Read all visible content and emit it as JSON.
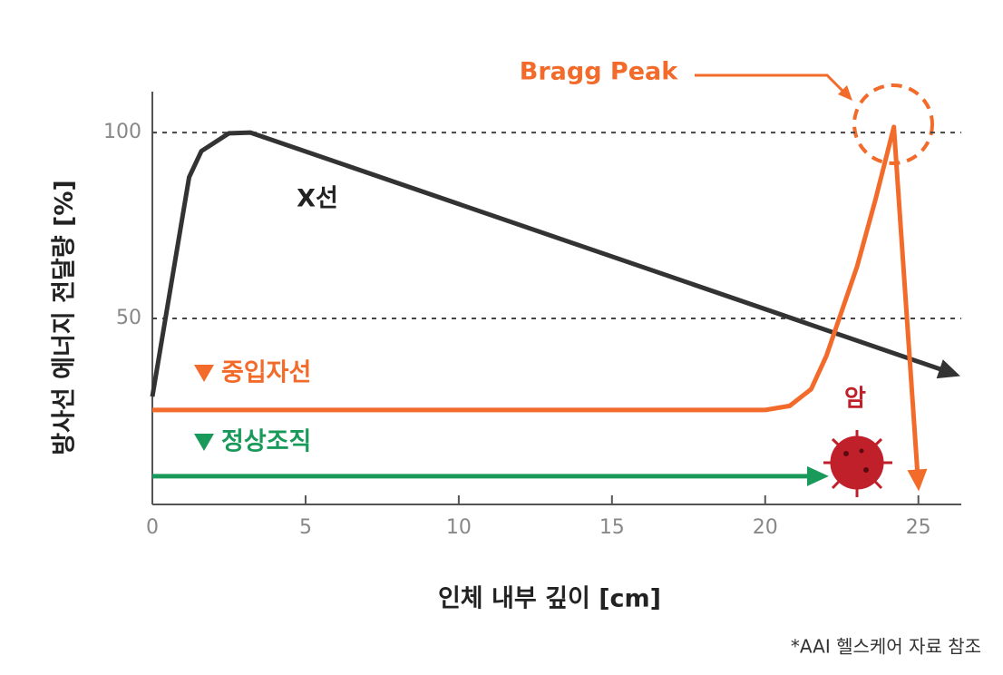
{
  "chart_data": {
    "type": "line",
    "y_label": "방사선 에너지 전달량 [%]",
    "x_label": "인체 내부 깊이 [cm]",
    "source": "*AAI 헬스케어 자료 참조",
    "annotations": {
      "bragg_peak": "Bragg Peak",
      "cancer": "암"
    },
    "xlim": [
      0,
      26.4
    ],
    "ylim": [
      0,
      111
    ],
    "xticks": [
      0,
      5,
      10,
      15,
      20,
      25
    ],
    "yticks": [
      50,
      100
    ],
    "grid": true,
    "series": [
      {
        "name": "X선",
        "color": "#333333",
        "x": [
          0,
          1.2,
          1.6,
          2.5,
          3.2,
          26.2
        ],
        "values": [
          29,
          88,
          95,
          99.8,
          100,
          35
        ]
      },
      {
        "name": "중입자선",
        "color": "#f26b2a",
        "x": [
          0,
          20,
          20.8,
          21.5,
          22,
          22.5,
          23,
          23.6,
          24.2,
          25
        ],
        "values": [
          25.4,
          25.4,
          26.5,
          31,
          40,
          52,
          64,
          82,
          101.5,
          5
        ]
      },
      {
        "name": "정상조직",
        "color": "#1a9a5a",
        "x": [
          0,
          21.9
        ],
        "values": [
          7.6,
          7.6
        ]
      }
    ]
  }
}
